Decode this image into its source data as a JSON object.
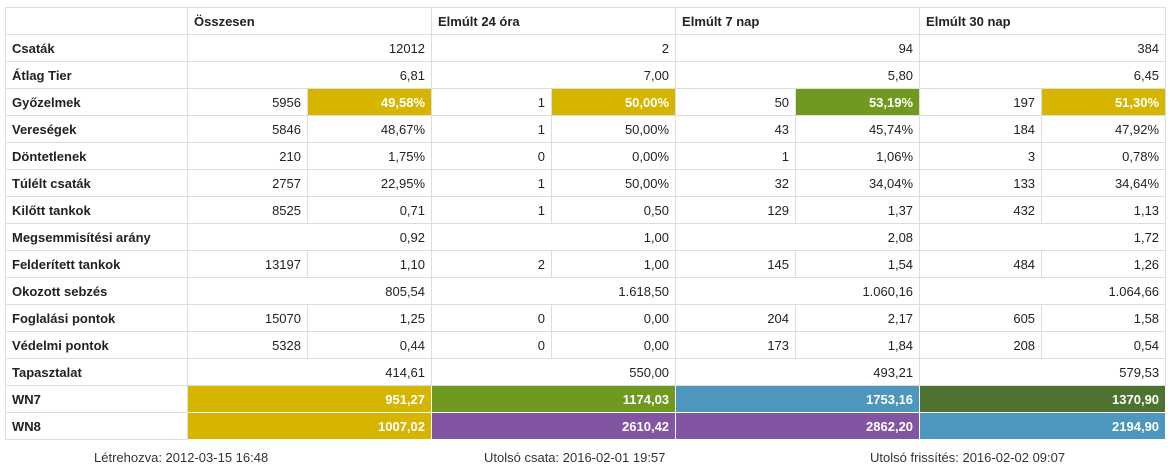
{
  "colors": {
    "yellow": "#d5b500",
    "green": "#6f9a1f",
    "blue": "#4d97be",
    "purple": "#8255a3",
    "darkgreen": "#4e7331"
  },
  "headers": [
    "Összesen",
    "Elmúlt 24 óra",
    "Elmúlt 7 nap",
    "Elmúlt 30 nap"
  ],
  "rows": [
    {
      "label": "Csaták",
      "values": [
        [
          "",
          "12012"
        ],
        [
          "",
          "2"
        ],
        [
          "",
          "94"
        ],
        [
          "",
          "384"
        ]
      ]
    },
    {
      "label": "Átlag Tier",
      "values": [
        [
          "",
          "6,81"
        ],
        [
          "",
          "7,00"
        ],
        [
          "",
          "5,80"
        ],
        [
          "",
          "6,45"
        ]
      ]
    },
    {
      "label": "Győzelmek",
      "values": [
        [
          "5956",
          "49,58%"
        ],
        [
          "1",
          "50,00%"
        ],
        [
          "50",
          "53,19%"
        ],
        [
          "197",
          "51,30%"
        ]
      ]
    },
    {
      "label": "Vereségek",
      "values": [
        [
          "5846",
          "48,67%"
        ],
        [
          "1",
          "50,00%"
        ],
        [
          "43",
          "45,74%"
        ],
        [
          "184",
          "47,92%"
        ]
      ]
    },
    {
      "label": "Döntetlenek",
      "values": [
        [
          "210",
          "1,75%"
        ],
        [
          "0",
          "0,00%"
        ],
        [
          "1",
          "1,06%"
        ],
        [
          "3",
          "0,78%"
        ]
      ]
    },
    {
      "label": "Túlélt csaták",
      "values": [
        [
          "2757",
          "22,95%"
        ],
        [
          "1",
          "50,00%"
        ],
        [
          "32",
          "34,04%"
        ],
        [
          "133",
          "34,64%"
        ]
      ]
    },
    {
      "label": "Kilőtt tankok",
      "values": [
        [
          "8525",
          "0,71"
        ],
        [
          "1",
          "0,50"
        ],
        [
          "129",
          "1,37"
        ],
        [
          "432",
          "1,13"
        ]
      ]
    },
    {
      "label": "Megsemmisítési arány",
      "values": [
        [
          "",
          "0,92"
        ],
        [
          "",
          "1,00"
        ],
        [
          "",
          "2,08"
        ],
        [
          "",
          "1,72"
        ]
      ]
    },
    {
      "label": "Felderített tankok",
      "values": [
        [
          "13197",
          "1,10"
        ],
        [
          "2",
          "1,00"
        ],
        [
          "145",
          "1,54"
        ],
        [
          "484",
          "1,26"
        ]
      ]
    },
    {
      "label": "Okozott sebzés",
      "values": [
        [
          "",
          "805,54"
        ],
        [
          "",
          "1.618,50"
        ],
        [
          "",
          "1.060,16"
        ],
        [
          "",
          "1.064,66"
        ]
      ]
    },
    {
      "label": "Foglalási pontok",
      "values": [
        [
          "15070",
          "1,25"
        ],
        [
          "0",
          "0,00"
        ],
        [
          "204",
          "2,17"
        ],
        [
          "605",
          "1,58"
        ]
      ]
    },
    {
      "label": "Védelmi pontok",
      "values": [
        [
          "5328",
          "0,44"
        ],
        [
          "0",
          "0,00"
        ],
        [
          "173",
          "1,84"
        ],
        [
          "208",
          "0,54"
        ]
      ]
    },
    {
      "label": "Tapasztalat",
      "values": [
        [
          "",
          "414,61"
        ],
        [
          "",
          "550,00"
        ],
        [
          "",
          "493,21"
        ],
        [
          "",
          "579,53"
        ]
      ]
    },
    {
      "label": "WN7",
      "values": [
        [
          "",
          "951,27"
        ],
        [
          "",
          "1174,03"
        ],
        [
          "",
          "1753,16"
        ],
        [
          "",
          "1370,90"
        ]
      ]
    },
    {
      "label": "WN8",
      "values": [
        [
          "",
          "1007,02"
        ],
        [
          "",
          "2610,42"
        ],
        [
          "",
          "2862,20"
        ],
        [
          "",
          "2194,90"
        ]
      ]
    }
  ],
  "footer": {
    "created": "Létrehozva: 2012-03-15 16:48",
    "last_battle": "Utolsó csata: 2016-02-01 19:57",
    "last_update": "Utolsó frissítés: 2016-02-02 09:07"
  }
}
